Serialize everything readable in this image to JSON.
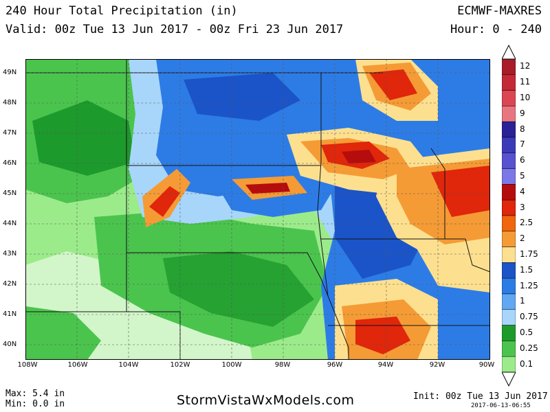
{
  "header": {
    "title": "240 Hour Total Precipitation (in)",
    "valid": "Valid: 00z Tue 13 Jun 2017 - 00z Fri 23 Jun 2017",
    "model": "ECMWF-MAXRES",
    "hours": "Hour: 0 - 240"
  },
  "footer": {
    "max": "Max: 5.4 in",
    "min": "Min: 0.0 in",
    "site": "StormVistaWxModels.com",
    "init": "Init: 00z Tue 13 Jun 2017",
    "generated": "2017-06-13-06:55"
  },
  "lat_labels": [
    "49N",
    "48N",
    "47N",
    "46N",
    "45N",
    "44N",
    "43N",
    "42N",
    "41N",
    "40N"
  ],
  "lon_labels": [
    "108W",
    "106W",
    "104W",
    "102W",
    "100W",
    "98W",
    "96W",
    "94W",
    "92W",
    "90W"
  ],
  "legend": {
    "labels": [
      "12",
      "11",
      "10",
      "9",
      "8",
      "7",
      "6",
      "5",
      "4",
      "3",
      "2.5",
      "2",
      "1.75",
      "1.5",
      "1.25",
      "1",
      "0.75",
      "0.5",
      "0.25",
      "0.1"
    ],
    "colors": [
      "#a81d28",
      "#c42a35",
      "#dc4653",
      "#e77680",
      "#2a2196",
      "#3b3bba",
      "#5852d0",
      "#7c78e8",
      "#b50d0d",
      "#e0260b",
      "#f0650d",
      "#f59b35",
      "#fde08f",
      "#1b54c8",
      "#2d7ce6",
      "#61a8f2",
      "#a8d6fa",
      "#1d9a2c",
      "#4bc44e",
      "#9ceb8b"
    ]
  },
  "map_colors": {
    "white": "#ffffff",
    "light_green": "#9ceb8b",
    "green": "#4bc44e",
    "dark_green": "#1d9a2c",
    "light_blue": "#a8d6fa",
    "blue": "#2d7ce6",
    "dark_blue": "#1b54c8",
    "yellow": "#fde08f",
    "orange": "#f59b35",
    "red_orange": "#e0260b",
    "red": "#b50d0d"
  }
}
